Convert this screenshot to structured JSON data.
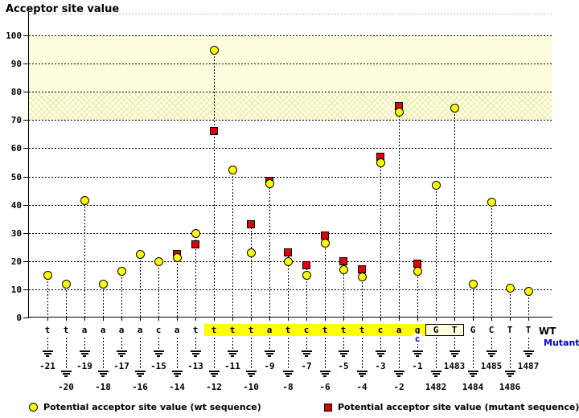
{
  "title": "Acceptor site value",
  "legend": {
    "wt": "Potential acceptor site value (wt sequence)",
    "mutant": "Potential acceptor site value (mutant sequence)"
  },
  "sequence_rows": {
    "wt_label": "WT",
    "mutant_label": "Mutant"
  },
  "colors": {
    "wt_marker": "#ffff00",
    "mutant_marker": "#dd0000",
    "highlight_box": "#ffff00",
    "exon_box_bg": "#ffffe0",
    "band_solid": "#ffffe0",
    "mutant_text_blue": "#0000cc"
  },
  "chart_data": {
    "type": "scatter",
    "title": "Acceptor site value",
    "ylabel": "Acceptor site value",
    "ylim": [
      0,
      110
    ],
    "yticks": [
      0,
      10,
      20,
      30,
      40,
      50,
      60,
      70,
      80,
      90,
      100
    ],
    "grid": "dotted-horizontal",
    "legend_position": "bottom",
    "bands": [
      {
        "from": 80,
        "to": 100,
        "style": "solid-pale-yellow"
      },
      {
        "from": 70,
        "to": 80,
        "style": "crosshatch-pale-yellow"
      }
    ],
    "series": [
      {
        "name": "Potential acceptor site value (wt sequence)",
        "marker": "yellow-circle"
      },
      {
        "name": "Potential acceptor site value (mutant sequence)",
        "marker": "red-square"
      }
    ],
    "points": [
      {
        "position": "-21",
        "base": "t",
        "wt": 15,
        "mutant": null
      },
      {
        "position": "-20",
        "base": "t",
        "wt": 12,
        "mutant": null
      },
      {
        "position": "-19",
        "base": "a",
        "wt": 41.5,
        "mutant": null
      },
      {
        "position": "-18",
        "base": "a",
        "wt": 12,
        "mutant": null
      },
      {
        "position": "-17",
        "base": "a",
        "wt": 16.5,
        "mutant": null
      },
      {
        "position": "-16",
        "base": "a",
        "wt": 22.5,
        "mutant": null
      },
      {
        "position": "-15",
        "base": "c",
        "wt": 20,
        "mutant": null
      },
      {
        "position": "-14",
        "base": "a",
        "wt": 21.5,
        "mutant": 22.5
      },
      {
        "position": "-13",
        "base": "t",
        "wt": 30,
        "mutant": 26
      },
      {
        "position": "-12",
        "base": "t",
        "wt": 95,
        "mutant": 66,
        "highlighted": true
      },
      {
        "position": "-11",
        "base": "t",
        "wt": 52.5,
        "mutant": null,
        "highlighted": true
      },
      {
        "position": "-10",
        "base": "t",
        "wt": 23,
        "mutant": 33,
        "highlighted": true
      },
      {
        "position": "-9",
        "base": "a",
        "wt": 47.5,
        "mutant": 48.5,
        "highlighted": true
      },
      {
        "position": "-8",
        "base": "t",
        "wt": 20,
        "mutant": 23,
        "highlighted": true
      },
      {
        "position": "-7",
        "base": "c",
        "wt": 15,
        "mutant": 18.5,
        "highlighted": true
      },
      {
        "position": "-6",
        "base": "t",
        "wt": 26.5,
        "mutant": 29,
        "highlighted": true
      },
      {
        "position": "-5",
        "base": "t",
        "wt": 17,
        "mutant": 20,
        "highlighted": true
      },
      {
        "position": "-4",
        "base": "t",
        "wt": 14.5,
        "mutant": 17,
        "highlighted": true
      },
      {
        "position": "-3",
        "base": "c",
        "wt": 55,
        "mutant": 57,
        "highlighted": true
      },
      {
        "position": "-2",
        "base": "a",
        "wt": 73,
        "mutant": 75,
        "highlighted": true
      },
      {
        "position": "-1",
        "base": "g",
        "wt": 16.5,
        "mutant": 19,
        "highlighted": true,
        "mutant_base": "c"
      },
      {
        "position": "1482",
        "base": "G",
        "wt": 47,
        "mutant": null,
        "boxed": true
      },
      {
        "position": "1483",
        "base": "T",
        "wt": 74.5,
        "mutant": null,
        "boxed": true
      },
      {
        "position": "1484",
        "base": "G",
        "wt": 12,
        "mutant": null
      },
      {
        "position": "1485",
        "base": "C",
        "wt": 41,
        "mutant": null
      },
      {
        "position": "1486",
        "base": "T",
        "wt": 10.5,
        "mutant": null
      },
      {
        "position": "1487",
        "base": "T",
        "wt": 9.5,
        "mutant": null
      }
    ]
  }
}
